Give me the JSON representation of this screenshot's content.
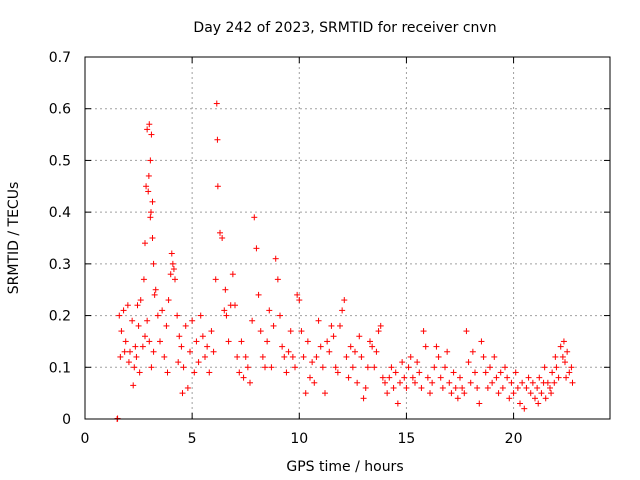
{
  "chart_data": {
    "type": "scatter",
    "title": "Day 242 of 2023, SRMTID for receiver cnvn",
    "xlabel": "GPS time / hours",
    "ylabel": "SRMTID / TECUs",
    "xlim": [
      0,
      24.5
    ],
    "ylim": [
      0,
      0.7
    ],
    "xticks": [
      0,
      5,
      10,
      15,
      20
    ],
    "xtick_labels": [
      "0",
      "5",
      "10",
      "15",
      "20"
    ],
    "yticks": [
      0,
      0.1,
      0.2,
      0.3,
      0.4,
      0.5,
      0.6,
      0.7
    ],
    "ytick_labels": [
      "0",
      "0.1",
      "0.2",
      "0.3",
      "0.4",
      "0.5",
      "0.6",
      "0.7"
    ],
    "grid": true,
    "marker": "+",
    "color": "#ff0000",
    "series": [
      {
        "name": "SRMTID",
        "points": [
          [
            1.5,
            0.0
          ],
          [
            1.52,
            0.001
          ],
          [
            1.6,
            0.2
          ],
          [
            1.7,
            0.17
          ],
          [
            1.8,
            0.21
          ],
          [
            1.9,
            0.15
          ],
          [
            2.0,
            0.22
          ],
          [
            2.1,
            0.13
          ],
          [
            2.2,
            0.19
          ],
          [
            2.3,
            0.1
          ],
          [
            2.4,
            0.12
          ],
          [
            2.5,
            0.18
          ],
          [
            1.65,
            0.12
          ],
          [
            1.85,
            0.13
          ],
          [
            2.05,
            0.11
          ],
          [
            2.25,
            0.065
          ],
          [
            2.35,
            0.14
          ],
          [
            2.45,
            0.22
          ],
          [
            2.55,
            0.09
          ],
          [
            2.6,
            0.23
          ],
          [
            2.7,
            0.14
          ],
          [
            2.75,
            0.27
          ],
          [
            2.8,
            0.34
          ],
          [
            2.85,
            0.45
          ],
          [
            2.9,
            0.56
          ],
          [
            2.95,
            0.44
          ],
          [
            3.0,
            0.57
          ],
          [
            3.05,
            0.5
          ],
          [
            3.1,
            0.55
          ],
          [
            3.15,
            0.42
          ],
          [
            3.2,
            0.3
          ],
          [
            2.8,
            0.16
          ],
          [
            2.9,
            0.19
          ],
          [
            3.0,
            0.15
          ],
          [
            3.1,
            0.1
          ],
          [
            3.2,
            0.13
          ],
          [
            3.3,
            0.25
          ],
          [
            3.4,
            0.2
          ],
          [
            3.5,
            0.15
          ],
          [
            3.6,
            0.21
          ],
          [
            3.7,
            0.12
          ],
          [
            3.8,
            0.18
          ],
          [
            3.9,
            0.23
          ],
          [
            4.0,
            0.28
          ],
          [
            4.1,
            0.3
          ],
          [
            4.2,
            0.27
          ],
          [
            4.3,
            0.2
          ],
          [
            4.4,
            0.16
          ],
          [
            4.5,
            0.14
          ],
          [
            4.6,
            0.1
          ],
          [
            4.7,
            0.18
          ],
          [
            3.05,
            0.39
          ],
          [
            3.15,
            0.35
          ],
          [
            2.98,
            0.47
          ],
          [
            3.08,
            0.4
          ],
          [
            3.25,
            0.24
          ],
          [
            4.05,
            0.32
          ],
          [
            4.15,
            0.29
          ],
          [
            3.85,
            0.09
          ],
          [
            4.35,
            0.11
          ],
          [
            4.55,
            0.05
          ],
          [
            4.8,
            0.06
          ],
          [
            4.9,
            0.13
          ],
          [
            5.0,
            0.19
          ],
          [
            5.1,
            0.09
          ],
          [
            5.2,
            0.15
          ],
          [
            5.3,
            0.11
          ],
          [
            5.4,
            0.2
          ],
          [
            5.5,
            0.16
          ],
          [
            5.6,
            0.12
          ],
          [
            5.7,
            0.14
          ],
          [
            5.8,
            0.09
          ],
          [
            5.9,
            0.17
          ],
          [
            6.0,
            0.13
          ],
          [
            6.1,
            0.27
          ],
          [
            6.15,
            0.61
          ],
          [
            6.18,
            0.54
          ],
          [
            6.2,
            0.45
          ],
          [
            6.3,
            0.36
          ],
          [
            6.4,
            0.35
          ],
          [
            6.5,
            0.21
          ],
          [
            6.55,
            0.25
          ],
          [
            6.6,
            0.2
          ],
          [
            6.7,
            0.15
          ],
          [
            6.8,
            0.22
          ],
          [
            6.9,
            0.28
          ],
          [
            7.0,
            0.22
          ],
          [
            7.1,
            0.12
          ],
          [
            7.2,
            0.09
          ],
          [
            7.3,
            0.15
          ],
          [
            7.4,
            0.08
          ],
          [
            7.5,
            0.12
          ],
          [
            7.6,
            0.1
          ],
          [
            7.7,
            0.07
          ],
          [
            7.8,
            0.19
          ],
          [
            7.9,
            0.39
          ],
          [
            8.0,
            0.33
          ],
          [
            8.1,
            0.24
          ],
          [
            8.2,
            0.17
          ],
          [
            8.3,
            0.12
          ],
          [
            8.4,
            0.1
          ],
          [
            8.5,
            0.15
          ],
          [
            8.6,
            0.21
          ],
          [
            8.7,
            0.1
          ],
          [
            8.8,
            0.18
          ],
          [
            8.9,
            0.31
          ],
          [
            9.0,
            0.27
          ],
          [
            9.1,
            0.2
          ],
          [
            9.2,
            0.14
          ],
          [
            9.3,
            0.12
          ],
          [
            9.4,
            0.09
          ],
          [
            9.5,
            0.13
          ],
          [
            9.6,
            0.17
          ],
          [
            9.7,
            0.12
          ],
          [
            9.8,
            0.1
          ],
          [
            9.9,
            0.24
          ],
          [
            10.0,
            0.23
          ],
          [
            10.1,
            0.17
          ],
          [
            10.2,
            0.12
          ],
          [
            10.3,
            0.05
          ],
          [
            10.4,
            0.15
          ],
          [
            10.5,
            0.08
          ],
          [
            10.6,
            0.11
          ],
          [
            10.7,
            0.07
          ],
          [
            10.8,
            0.12
          ],
          [
            10.9,
            0.19
          ],
          [
            11.0,
            0.14
          ],
          [
            11.1,
            0.1
          ],
          [
            11.2,
            0.05
          ],
          [
            11.3,
            0.15
          ],
          [
            11.4,
            0.13
          ],
          [
            11.5,
            0.18
          ],
          [
            11.6,
            0.16
          ],
          [
            11.7,
            0.1
          ],
          [
            11.8,
            0.09
          ],
          [
            11.9,
            0.18
          ],
          [
            12.0,
            0.21
          ],
          [
            12.1,
            0.23
          ],
          [
            12.2,
            0.12
          ],
          [
            12.3,
            0.08
          ],
          [
            12.4,
            0.14
          ],
          [
            12.5,
            0.1
          ],
          [
            12.6,
            0.13
          ],
          [
            12.7,
            0.07
          ],
          [
            12.8,
            0.16
          ],
          [
            12.9,
            0.12
          ],
          [
            13.0,
            0.04
          ],
          [
            13.1,
            0.06
          ],
          [
            13.2,
            0.1
          ],
          [
            13.3,
            0.15
          ],
          [
            13.4,
            0.14
          ],
          [
            13.5,
            0.1
          ],
          [
            13.6,
            0.13
          ],
          [
            13.7,
            0.17
          ],
          [
            13.8,
            0.18
          ],
          [
            13.9,
            0.08
          ],
          [
            14.0,
            0.07
          ],
          [
            14.1,
            0.05
          ],
          [
            14.2,
            0.08
          ],
          [
            14.3,
            0.1
          ],
          [
            14.4,
            0.06
          ],
          [
            14.5,
            0.09
          ],
          [
            14.6,
            0.03
          ],
          [
            14.7,
            0.07
          ],
          [
            14.8,
            0.11
          ],
          [
            14.9,
            0.08
          ],
          [
            15.0,
            0.06
          ],
          [
            15.1,
            0.1
          ],
          [
            15.2,
            0.12
          ],
          [
            15.3,
            0.08
          ],
          [
            15.4,
            0.07
          ],
          [
            15.5,
            0.11
          ],
          [
            15.6,
            0.09
          ],
          [
            15.7,
            0.06
          ],
          [
            15.8,
            0.17
          ],
          [
            15.9,
            0.14
          ],
          [
            16.0,
            0.08
          ],
          [
            16.1,
            0.05
          ],
          [
            16.2,
            0.07
          ],
          [
            16.3,
            0.1
          ],
          [
            16.4,
            0.14
          ],
          [
            16.5,
            0.12
          ],
          [
            16.6,
            0.08
          ],
          [
            16.7,
            0.06
          ],
          [
            16.8,
            0.1
          ],
          [
            16.9,
            0.13
          ],
          [
            17.0,
            0.07
          ],
          [
            17.1,
            0.05
          ],
          [
            17.2,
            0.09
          ],
          [
            17.3,
            0.06
          ],
          [
            17.4,
            0.04
          ],
          [
            17.5,
            0.08
          ],
          [
            17.6,
            0.06
          ],
          [
            17.7,
            0.05
          ],
          [
            17.8,
            0.17
          ],
          [
            17.9,
            0.11
          ],
          [
            18.0,
            0.07
          ],
          [
            18.1,
            0.13
          ],
          [
            18.2,
            0.09
          ],
          [
            18.3,
            0.06
          ],
          [
            18.4,
            0.03
          ],
          [
            18.5,
            0.15
          ],
          [
            18.6,
            0.12
          ],
          [
            18.7,
            0.09
          ],
          [
            18.8,
            0.06
          ],
          [
            18.9,
            0.1
          ],
          [
            19.0,
            0.07
          ],
          [
            19.1,
            0.12
          ],
          [
            19.2,
            0.08
          ],
          [
            19.3,
            0.05
          ],
          [
            19.4,
            0.09
          ],
          [
            19.5,
            0.06
          ],
          [
            19.6,
            0.1
          ],
          [
            19.7,
            0.08
          ],
          [
            19.8,
            0.04
          ],
          [
            19.9,
            0.07
          ],
          [
            20.0,
            0.05
          ],
          [
            20.1,
            0.09
          ],
          [
            20.2,
            0.06
          ],
          [
            20.3,
            0.03
          ],
          [
            20.4,
            0.07
          ],
          [
            20.5,
            0.02
          ],
          [
            20.6,
            0.06
          ],
          [
            20.7,
            0.08
          ],
          [
            20.8,
            0.05
          ],
          [
            20.9,
            0.07
          ],
          [
            21.0,
            0.04
          ],
          [
            21.1,
            0.06
          ],
          [
            21.2,
            0.08
          ],
          [
            21.3,
            0.05
          ],
          [
            21.4,
            0.07
          ],
          [
            21.5,
            0.04
          ],
          [
            21.6,
            0.07
          ],
          [
            21.7,
            0.06
          ],
          [
            21.8,
            0.09
          ],
          [
            21.9,
            0.07
          ],
          [
            22.0,
            0.1
          ],
          [
            22.1,
            0.08
          ],
          [
            22.2,
            0.14
          ],
          [
            22.3,
            0.12
          ],
          [
            22.4,
            0.11
          ],
          [
            22.5,
            0.13
          ],
          [
            22.6,
            0.09
          ],
          [
            22.7,
            0.1
          ],
          [
            22.75,
            0.07
          ],
          [
            22.35,
            0.15
          ],
          [
            22.45,
            0.08
          ],
          [
            21.95,
            0.12
          ],
          [
            21.75,
            0.05
          ],
          [
            21.45,
            0.1
          ],
          [
            21.15,
            0.03
          ]
        ]
      }
    ]
  }
}
